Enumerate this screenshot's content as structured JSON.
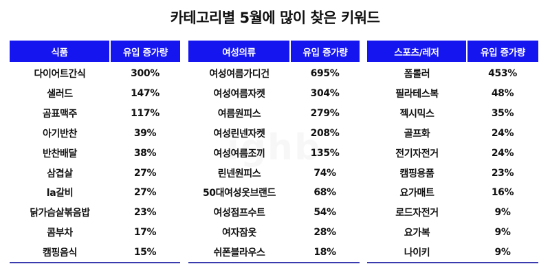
{
  "title": "카테고리별 5월에 많이 찾은 키워드",
  "watermark": "ighb",
  "colors": {
    "header_bg": "#1515f0",
    "header_text": "#ffffff",
    "bottom_rule": "#3b3bb0"
  },
  "tables": [
    {
      "category": "식품",
      "metric": "유입 증가량",
      "rows": [
        {
          "keyword": "다이어트간식",
          "value": "300%"
        },
        {
          "keyword": "샐러드",
          "value": "147%"
        },
        {
          "keyword": "곰표맥주",
          "value": "117%"
        },
        {
          "keyword": "아기반찬",
          "value": "39%"
        },
        {
          "keyword": "반찬배달",
          "value": "38%"
        },
        {
          "keyword": "삼겹살",
          "value": "27%"
        },
        {
          "keyword": "la갈비",
          "value": "27%"
        },
        {
          "keyword": "닭가슴살볶음밥",
          "value": "23%"
        },
        {
          "keyword": "콤부차",
          "value": "17%"
        },
        {
          "keyword": "캠핑음식",
          "value": "15%"
        }
      ]
    },
    {
      "category": "여성의류",
      "metric": "유입 증가량",
      "rows": [
        {
          "keyword": "여성여름가디건",
          "value": "695%"
        },
        {
          "keyword": "여성여름자켓",
          "value": "304%"
        },
        {
          "keyword": "여름원피스",
          "value": "279%"
        },
        {
          "keyword": "여성린넨자켓",
          "value": "208%"
        },
        {
          "keyword": "여성여름조끼",
          "value": "135%"
        },
        {
          "keyword": "린넨원피스",
          "value": "74%"
        },
        {
          "keyword": "50대여성옷브랜드",
          "value": "68%"
        },
        {
          "keyword": "여성점프수트",
          "value": "54%"
        },
        {
          "keyword": "여자잠옷",
          "value": "28%"
        },
        {
          "keyword": "쉬폰블라우스",
          "value": "18%"
        }
      ]
    },
    {
      "category": "스포츠/레저",
      "metric": "유입 증가량",
      "rows": [
        {
          "keyword": "폼롤러",
          "value": "453%"
        },
        {
          "keyword": "필라테스복",
          "value": "48%"
        },
        {
          "keyword": "젝시믹스",
          "value": "35%"
        },
        {
          "keyword": "골프화",
          "value": "24%"
        },
        {
          "keyword": "전기자전거",
          "value": "24%"
        },
        {
          "keyword": "캠핑용품",
          "value": "23%"
        },
        {
          "keyword": "요가매트",
          "value": "16%"
        },
        {
          "keyword": "로드자전거",
          "value": "9%"
        },
        {
          "keyword": "요가복",
          "value": "9%"
        },
        {
          "keyword": "나이키",
          "value": "9%"
        }
      ]
    }
  ]
}
